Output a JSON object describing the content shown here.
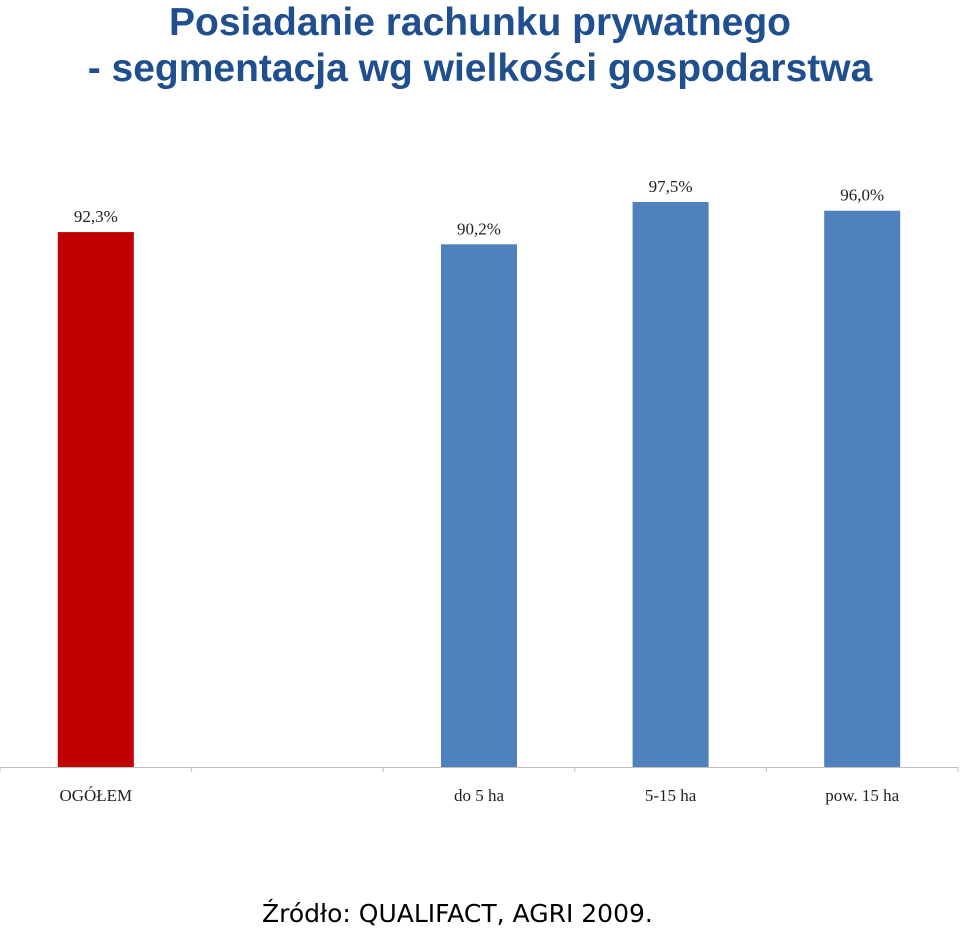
{
  "title_line1": "Posiadanie rachunku prywatnego",
  "title_line2": "- segmentacja wg wielkości gospodarstwa",
  "source": "Źródło: QUALIFACT, AGRI 2009.",
  "colors": {
    "title": "#1f4f8f",
    "highlight_bar": "#c00000",
    "bar": "#4f81bd",
    "axis": "#bfbfbf"
  },
  "chart_data": {
    "type": "bar",
    "categories": [
      "OGÓŁEM",
      "",
      "do 5 ha",
      "5-15 ha",
      "pow. 15 ha"
    ],
    "values": [
      92.3,
      null,
      90.2,
      97.5,
      96.0
    ],
    "value_labels": [
      "92,3%",
      "",
      "90,2%",
      "97,5%",
      "96,0%"
    ],
    "highlight_index": 0,
    "ylim": [
      0,
      100
    ],
    "grid": false,
    "legend": "none"
  }
}
